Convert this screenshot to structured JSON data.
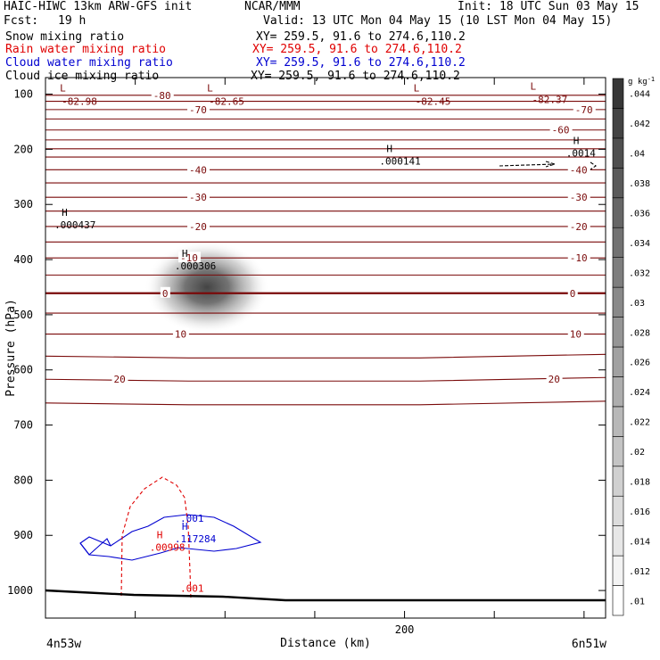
{
  "header": {
    "model": "HAIC-HIWC 13km ARW-GFS init",
    "org": "NCAR/MMM",
    "init": "Init: 18 UTC Sun 03 May 15",
    "fcst_label": "Fcst:",
    "fcst_value": "19 h",
    "valid": "Valid: 13 UTC Mon 04 May 15 (10 LST Mon 04 May 15)"
  },
  "fields": [
    {
      "name": "Snow mixing ratio",
      "xy": "XY= 259.5, 91.6 to 274.6,110.2",
      "color": "#000000"
    },
    {
      "name": "Rain water mixing ratio",
      "xy": "XY= 259.5, 91.6 to 274.6,110.2",
      "color": "#e00000"
    },
    {
      "name": "Cloud water mixing ratio",
      "xy": "XY= 259.5, 91.6 to 274.6,110.2",
      "color": "#0000d0"
    },
    {
      "name": "Cloud ice mixing ratio",
      "xy": "XY= 259.5, 91.6 to 274.6,110.2",
      "color": "#000000"
    }
  ],
  "chart_data": {
    "type": "contour",
    "xlabel": "Distance (km)",
    "ylabel": "Pressure (hPa)",
    "xlim": [
      0,
      312
    ],
    "ylim": [
      1050,
      70
    ],
    "x_ticks": [
      0,
      50,
      100,
      150,
      200,
      250,
      300
    ],
    "x_tick_labels": [
      "",
      "",
      "",
      "",
      "200",
      "",
      ""
    ],
    "y_ticks": [
      100,
      200,
      300,
      400,
      500,
      600,
      700,
      800,
      900,
      1000
    ],
    "x_start_label": "4n53w",
    "x_end_label": "6n51w",
    "temperature_contours": {
      "color": "#7a0a0a",
      "levels": [
        {
          "value": -80,
          "p": 102
        },
        {
          "value": -75,
          "p": 113
        },
        {
          "value": -70,
          "p": 128
        },
        {
          "value": -65,
          "p": 145
        },
        {
          "value": -60,
          "p": 165
        },
        {
          "value": -55,
          "p": 183
        },
        {
          "value": -50,
          "p": 199
        },
        {
          "value": -45,
          "p": 214
        },
        {
          "value": -40,
          "p": 237
        },
        {
          "value": -35,
          "p": 261
        },
        {
          "value": -30,
          "p": 287
        },
        {
          "value": -25,
          "p": 312
        },
        {
          "value": -20,
          "p": 340
        },
        {
          "value": -15,
          "p": 368
        },
        {
          "value": -10,
          "p": 397
        },
        {
          "value": -5,
          "p": 428
        },
        {
          "value": 0,
          "p": 461
        },
        {
          "value": 5,
          "p": 497
        },
        {
          "value": 10,
          "p": 535
        },
        {
          "value": 15,
          "p": 575
        },
        {
          "value": 20,
          "p": 617
        },
        {
          "value": 25,
          "p": 660
        }
      ],
      "labels": [
        {
          "text": "-80",
          "x": 60,
          "p": 102
        },
        {
          "text": "-70",
          "x": 80,
          "p": 128
        },
        {
          "text": "-70",
          "x": 295,
          "p": 128
        },
        {
          "text": "-60",
          "x": 282,
          "p": 165
        },
        {
          "text": "-40",
          "x": 80,
          "p": 237
        },
        {
          "text": "-40",
          "x": 292,
          "p": 237
        },
        {
          "text": "-30",
          "x": 80,
          "p": 287
        },
        {
          "text": "-30",
          "x": 292,
          "p": 287
        },
        {
          "text": "-20",
          "x": 80,
          "p": 340
        },
        {
          "text": "-20",
          "x": 292,
          "p": 340
        },
        {
          "text": "-10",
          "x": 75,
          "p": 397
        },
        {
          "text": "-10",
          "x": 292,
          "p": 397
        },
        {
          "text": "0",
          "x": 65,
          "p": 461
        },
        {
          "text": "0",
          "x": 292,
          "p": 461
        },
        {
          "text": "10",
          "x": 72,
          "p": 535
        },
        {
          "text": "10",
          "x": 292,
          "p": 535
        },
        {
          "text": "20",
          "x": 38,
          "p": 617
        },
        {
          "text": "20",
          "x": 280,
          "p": 617
        }
      ],
      "lows": [
        {
          "x": 8,
          "p": 95,
          "value": "-82.98"
        },
        {
          "x": 90,
          "p": 95,
          "value": "-82.65"
        },
        {
          "x": 205,
          "p": 95,
          "value": "-82.45"
        },
        {
          "x": 270,
          "p": 92,
          "value": "-82.37"
        }
      ]
    },
    "maxima": [
      {
        "x": 5,
        "p": 330,
        "value": ".000437",
        "color": "#000000"
      },
      {
        "x": 186,
        "p": 215,
        "value": ".000141",
        "color": "#000000"
      },
      {
        "x": 290,
        "p": 200,
        "value": ".0014",
        "color": "#000000"
      },
      {
        "x": 72,
        "p": 405,
        "value": ".000306",
        "color": "#000000"
      },
      {
        "x": 72,
        "p": 900,
        "value": ".117284",
        "color": "#0000d0"
      },
      {
        "x": 58,
        "p": 915,
        "value": ".00998",
        "color": "#e00000"
      }
    ],
    "contour_labels": [
      {
        "text": ".001",
        "x": 75,
        "p": 875,
        "color": "#0000d0"
      },
      {
        "text": ".001",
        "x": 75,
        "p": 1002,
        "color": "#e00000"
      }
    ],
    "colorbar": {
      "unit_main": "g kg",
      "unit_exp": "-1",
      "labels": [
        ".01",
        ".012",
        ".014",
        ".016",
        ".018",
        ".02",
        ".022",
        ".024",
        ".026",
        ".028",
        ".03",
        ".032",
        ".034",
        ".036",
        ".038",
        ".04",
        ".042",
        ".044"
      ]
    }
  }
}
